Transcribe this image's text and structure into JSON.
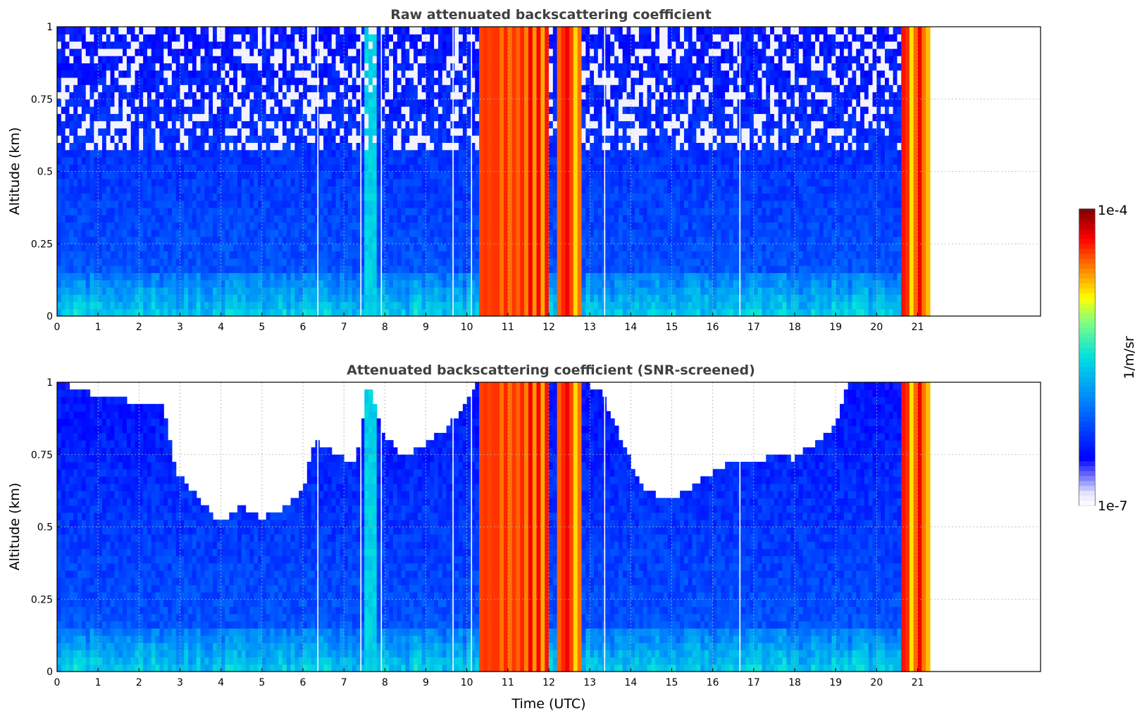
{
  "chart_data": [
    {
      "type": "heatmap",
      "title": "Raw attenuated backscattering coefficient",
      "xlabel": "",
      "ylabel": "Altitude (km)",
      "xlim": [
        0,
        24
      ],
      "ylim": [
        0,
        1
      ],
      "xticks": [
        "0",
        "1",
        "2",
        "3",
        "4",
        "5",
        "6",
        "7",
        "8",
        "9",
        "10",
        "11",
        "12",
        "13",
        "14",
        "15",
        "16",
        "17",
        "18",
        "19",
        "20",
        "21"
      ],
      "yticks": [
        "0",
        "0.25",
        "0.5",
        "0.75",
        "1"
      ],
      "grid": true,
      "screened": false,
      "data_x_range": [
        0,
        21.3
      ]
    },
    {
      "type": "heatmap",
      "title": "Attenuated backscattering coefficient (SNR-screened)",
      "xlabel": "Time (UTC)",
      "ylabel": "Altitude (km)",
      "xlim": [
        0,
        24
      ],
      "ylim": [
        0,
        1
      ],
      "xticks": [
        "0",
        "1",
        "2",
        "3",
        "4",
        "5",
        "6",
        "7",
        "8",
        "9",
        "10",
        "11",
        "12",
        "13",
        "14",
        "15",
        "16",
        "17",
        "18",
        "19",
        "20",
        "21"
      ],
      "yticks": [
        "0",
        "0.25",
        "0.5",
        "0.75",
        "1"
      ],
      "grid": true,
      "screened": true,
      "data_x_range": [
        0,
        21.3
      ]
    }
  ],
  "colorbar": {
    "label": "1/m/sr",
    "min_label": "1e-7",
    "max_label": "1e-4",
    "scale": "log",
    "colormap": "jet"
  },
  "features": {
    "cloud_bands": [
      [
        10.3,
        12.0
      ],
      [
        12.2,
        12.8
      ],
      [
        20.6,
        21.3
      ]
    ],
    "gaps": [
      6.35,
      7.4,
      7.9,
      9.65,
      10.1,
      13.35,
      16.65
    ]
  }
}
